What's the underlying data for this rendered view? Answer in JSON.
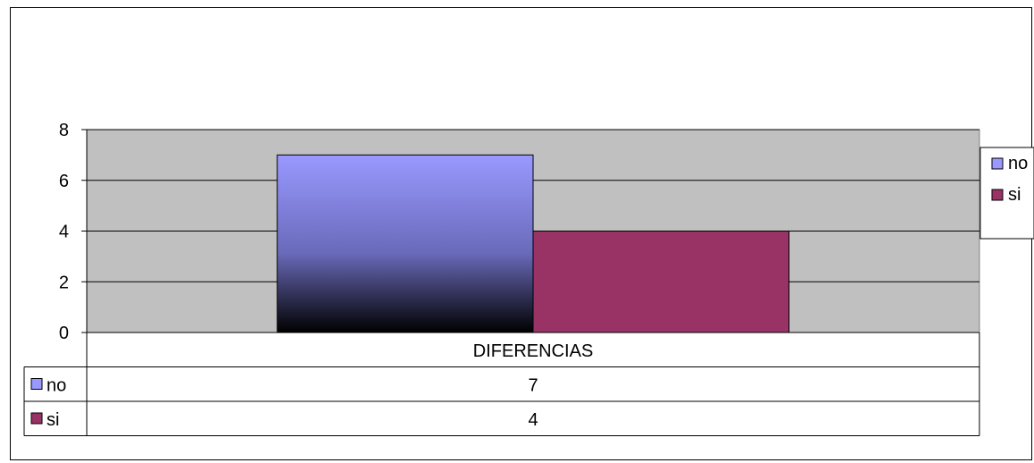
{
  "chart_data": {
    "type": "bar",
    "categories": [
      "DIFERENCIAS"
    ],
    "series": [
      {
        "name": "no",
        "values": [
          7
        ],
        "color": "#9999ff"
      },
      {
        "name": "si",
        "values": [
          4
        ],
        "color": "#993366"
      }
    ],
    "ylim": [
      0,
      8
    ],
    "yticks": [
      0,
      2,
      4,
      6,
      8
    ],
    "title": "",
    "xlabel": "",
    "ylabel": "",
    "legend": "right",
    "grid": true,
    "data_table": true,
    "plot_background": "#c0c0c0"
  }
}
